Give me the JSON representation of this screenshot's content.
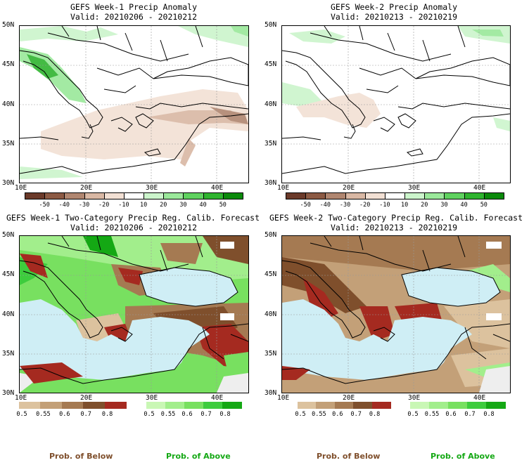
{
  "panels": [
    {
      "title": "GEFS Week-1 Precip Anomaly",
      "valid": "Valid: 20210206 - 20210212"
    },
    {
      "title": "GEFS Week-2 Precip Anomaly",
      "valid": "Valid: 20210213 - 20210219"
    },
    {
      "title": "GEFS Week-1 Two-Category Precip Reg. Calib. Forecast",
      "valid": "Valid: 20210206 - 20210212"
    },
    {
      "title": "GEFS Week-2 Two-Category Precip Reg. Calib. Forecast",
      "valid": "Valid: 20210213 - 20210219"
    }
  ],
  "axes": {
    "lat": [
      "50N",
      "45N",
      "40N",
      "35N",
      "30N"
    ],
    "lon": [
      "10E",
      "20E",
      "30E",
      "40E"
    ]
  },
  "anomaly_colorbar": {
    "labels": [
      "-50",
      "-40",
      "-30",
      "-20",
      "-10",
      "10",
      "20",
      "30",
      "40",
      "50"
    ],
    "colors": [
      "#6b3a2a",
      "#8c5a44",
      "#b08670",
      "#d9b8a4",
      "#f2e0d4",
      "#ffffff",
      "#ccf5cc",
      "#9ae89a",
      "#5fd25f",
      "#2fb42f",
      "#0b8a0b"
    ]
  },
  "below_colorbar": {
    "labels": [
      "0.5",
      "0.55",
      "0.6",
      "0.7",
      "0.8"
    ],
    "colors": [
      "#dcc29e",
      "#c3a078",
      "#a57a52",
      "#7f4f2c",
      "#a52a20"
    ]
  },
  "above_colorbar": {
    "labels": [
      "0.5",
      "0.55",
      "0.6",
      "0.7",
      "0.8"
    ],
    "colors": [
      "#c9f7b5",
      "#a2ee8c",
      "#78e060",
      "#3dcc3d",
      "#14a814"
    ]
  },
  "footer": {
    "below": "Prob. of Below",
    "above": "Prob. of Above"
  },
  "colors": {
    "sea": "#cfeef5",
    "below_text": "#7f4f2c",
    "above_text": "#14a814",
    "no_data": "#eeeeee"
  }
}
